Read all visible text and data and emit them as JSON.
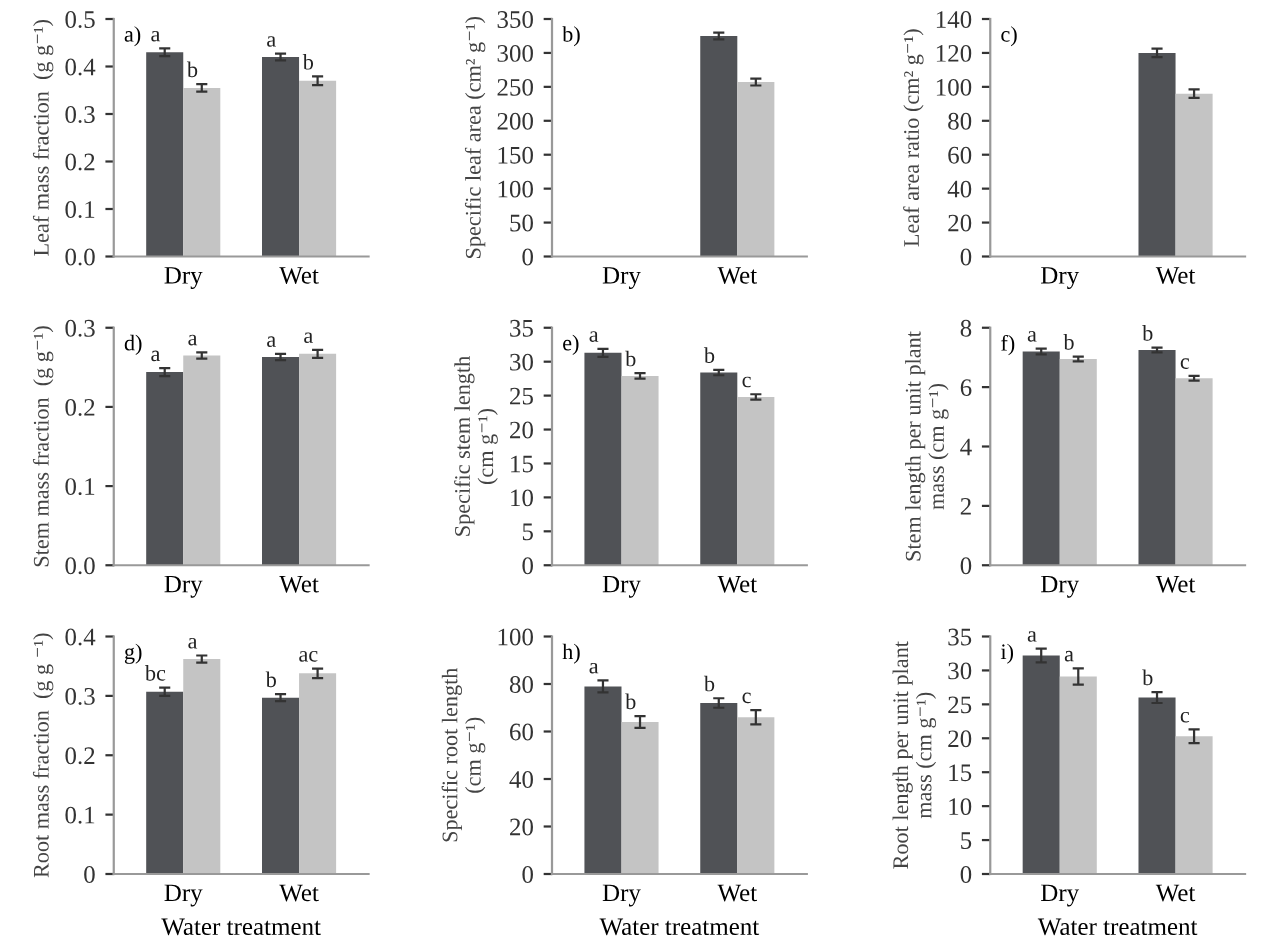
{
  "chart_data": [
    {
      "type": "bar",
      "annotations": [
        "a)"
      ],
      "ylabel": "Leaf mass fraction  (g g⁻¹)",
      "categories": [
        "Dry",
        "Wet"
      ],
      "ylim": [
        0,
        0.5
      ],
      "yticks": [
        {
          "value": 0,
          "label": "0.0"
        },
        0.1,
        0.2,
        0.3,
        0.4,
        0.5
      ],
      "grid": false,
      "legend": false,
      "series": [
        {
          "color": "#505256",
          "values": [
            0.43,
            0.42
          ],
          "errors": [
            0.008,
            0.007
          ],
          "value_labels": [
            "a",
            "a"
          ]
        },
        {
          "color": "#c4c4c4",
          "values": [
            0.355,
            0.37
          ],
          "errors": [
            0.008,
            0.009
          ],
          "value_labels": [
            "b",
            "b"
          ]
        }
      ]
    },
    {
      "type": "bar",
      "annotations": [
        "b)"
      ],
      "ylabel": "Specific leaf area (cm² g⁻¹)",
      "categories": [
        "Dry",
        "Wet"
      ],
      "ylim": [
        0,
        350
      ],
      "yticks": [
        0,
        50,
        100,
        150,
        200,
        250,
        300,
        350
      ],
      "grid": false,
      "legend": false,
      "series": [
        {
          "color": "#505256",
          "values": [
            null,
            325
          ],
          "errors": [
            null,
            5
          ]
        },
        {
          "color": "#c4c4c4",
          "values": [
            null,
            257
          ],
          "errors": [
            null,
            5
          ]
        }
      ]
    },
    {
      "type": "bar",
      "annotations": [
        "c)"
      ],
      "ylabel": "Leaf area ratio (cm² g⁻¹)",
      "categories": [
        "Dry",
        "Wet"
      ],
      "ylim": [
        0,
        140
      ],
      "yticks": [
        0,
        20,
        40,
        60,
        80,
        100,
        120,
        140
      ],
      "grid": false,
      "legend": false,
      "series": [
        {
          "color": "#505256",
          "values": [
            null,
            120
          ],
          "errors": [
            null,
            2.5
          ]
        },
        {
          "color": "#c4c4c4",
          "values": [
            null,
            96
          ],
          "errors": [
            null,
            2.5
          ]
        }
      ]
    },
    {
      "type": "bar",
      "annotations": [
        "d)"
      ],
      "ylabel": "Stem mass fraction  (g g⁻¹)",
      "categories": [
        "Dry",
        "Wet"
      ],
      "ylim": [
        0,
        0.3
      ],
      "yticks": [
        {
          "value": 0,
          "label": "0.0"
        },
        0.1,
        0.2,
        0.3
      ],
      "grid": false,
      "legend": false,
      "series": [
        {
          "color": "#505256",
          "values": [
            0.244,
            0.263
          ],
          "errors": [
            0.005,
            0.004
          ],
          "value_labels": [
            "a",
            "a"
          ]
        },
        {
          "color": "#c4c4c4",
          "values": [
            0.265,
            0.267
          ],
          "errors": [
            0.004,
            0.005
          ],
          "value_labels": [
            "a",
            "a"
          ]
        }
      ]
    },
    {
      "type": "bar",
      "annotations": [
        "e)"
      ],
      "ylabel": "Specific stem length\n(cm g⁻¹)",
      "categories": [
        "Dry",
        "Wet"
      ],
      "ylim": [
        0,
        35
      ],
      "yticks": [
        0,
        5,
        10,
        15,
        20,
        25,
        30,
        35
      ],
      "grid": false,
      "legend": false,
      "series": [
        {
          "color": "#505256",
          "values": [
            31.3,
            28.4
          ],
          "errors": [
            0.6,
            0.4
          ],
          "value_labels": [
            "a",
            "b"
          ]
        },
        {
          "color": "#c4c4c4",
          "values": [
            27.9,
            24.8
          ],
          "errors": [
            0.4,
            0.4
          ],
          "value_labels": [
            "b",
            "c"
          ]
        }
      ]
    },
    {
      "type": "bar",
      "annotations": [
        "f)"
      ],
      "ylabel": "Stem length per unit plant\nmass (cm g⁻¹)",
      "categories": [
        "Dry",
        "Wet"
      ],
      "ylim": [
        0,
        8
      ],
      "yticks": [
        0,
        2,
        4,
        6,
        8
      ],
      "grid": false,
      "legend": false,
      "series": [
        {
          "color": "#505256",
          "values": [
            7.2,
            7.25
          ],
          "errors": [
            0.1,
            0.08
          ],
          "value_labels": [
            "a",
            "b"
          ]
        },
        {
          "color": "#c4c4c4",
          "values": [
            6.95,
            6.3
          ],
          "errors": [
            0.08,
            0.08
          ],
          "value_labels": [
            "b",
            "c"
          ]
        }
      ]
    },
    {
      "type": "bar",
      "annotations": [
        "g)"
      ],
      "ylabel": "Root mass fraction  (g g ⁻¹)",
      "xlabel": "Water treatment",
      "categories": [
        "Dry",
        "Wet"
      ],
      "ylim": [
        0,
        0.4
      ],
      "yticks": [
        0,
        0.1,
        0.2,
        0.3,
        0.4
      ],
      "grid": false,
      "legend": false,
      "series": [
        {
          "color": "#505256",
          "values": [
            0.307,
            0.297
          ],
          "errors": [
            0.007,
            0.006
          ],
          "value_labels": [
            "bc",
            "b"
          ]
        },
        {
          "color": "#c4c4c4",
          "values": [
            0.362,
            0.338
          ],
          "errors": [
            0.006,
            0.008
          ],
          "value_labels": [
            "a",
            "ac"
          ]
        }
      ]
    },
    {
      "type": "bar",
      "annotations": [
        "h)"
      ],
      "ylabel": "Specific root length\n(cm g⁻¹)",
      "xlabel": "Water treatment",
      "categories": [
        "Dry",
        "Wet"
      ],
      "ylim": [
        0,
        100
      ],
      "yticks": [
        0,
        20,
        40,
        60,
        80,
        100
      ],
      "grid": false,
      "legend": false,
      "series": [
        {
          "color": "#505256",
          "values": [
            79,
            72
          ],
          "errors": [
            2.5,
            2
          ],
          "value_labels": [
            "a",
            "b"
          ]
        },
        {
          "color": "#c4c4c4",
          "values": [
            64,
            66
          ],
          "errors": [
            2.5,
            3
          ],
          "value_labels": [
            "b",
            "c"
          ]
        }
      ]
    },
    {
      "type": "bar",
      "annotations": [
        "i)"
      ],
      "ylabel": "Root length per unit plant\nmass (cm g⁻¹)",
      "xlabel": "Water treatment",
      "categories": [
        "Dry",
        "Wet"
      ],
      "ylim": [
        0,
        35
      ],
      "yticks": [
        0,
        5,
        10,
        15,
        20,
        25,
        30,
        35
      ],
      "grid": false,
      "legend": false,
      "series": [
        {
          "color": "#505256",
          "values": [
            32.2,
            26.0
          ],
          "errors": [
            1.0,
            0.8
          ],
          "value_labels": [
            "a",
            "b"
          ]
        },
        {
          "color": "#c4c4c4",
          "values": [
            29.1,
            20.3
          ],
          "errors": [
            1.2,
            1.0
          ],
          "value_labels": [
            "a",
            "c"
          ]
        }
      ]
    }
  ]
}
